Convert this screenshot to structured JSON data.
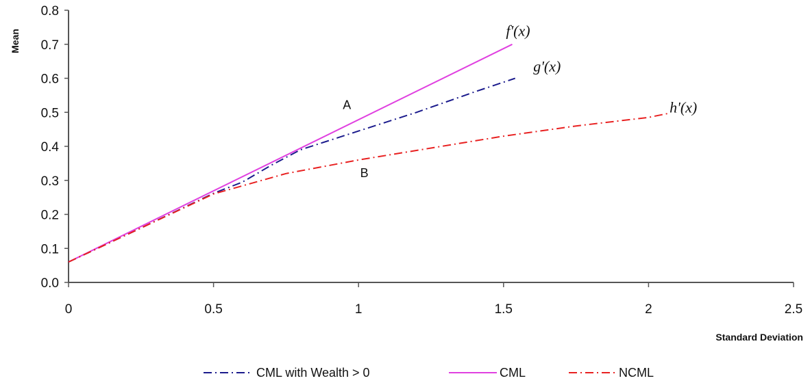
{
  "chart_data": {
    "type": "line",
    "xlabel": "Standard Deviation",
    "ylabel": "Mean",
    "xlim": [
      0,
      2.5
    ],
    "ylim": [
      0,
      0.8
    ],
    "x_ticks": [
      "0",
      "0.5",
      "1",
      "1.5",
      "2",
      "2.5"
    ],
    "y_ticks": [
      "0.0",
      "0.1",
      "0.2",
      "0.3",
      "0.4",
      "0.5",
      "0.6",
      "0.7",
      "0.8"
    ],
    "grid": false,
    "legend_position": "bottom",
    "series": [
      {
        "name": "CML with Wealth > 0",
        "color": "#1a1a8c",
        "dash": "dash-dot",
        "points": [
          [
            0,
            0.06
          ],
          [
            0.25,
            0.16
          ],
          [
            0.5,
            0.262
          ],
          [
            0.6,
            0.295
          ],
          [
            0.7,
            0.345
          ],
          [
            0.8,
            0.39
          ],
          [
            1.0,
            0.445
          ],
          [
            1.2,
            0.5
          ],
          [
            1.4,
            0.56
          ],
          [
            1.54,
            0.6
          ]
        ]
      },
      {
        "name": "CML",
        "color": "#e040e0",
        "dash": "solid",
        "points": [
          [
            0,
            0.06
          ],
          [
            1.53,
            0.7
          ]
        ]
      },
      {
        "name": "NCML",
        "color": "#e82020",
        "dash": "dash-dot",
        "points": [
          [
            0,
            0.06
          ],
          [
            0.25,
            0.16
          ],
          [
            0.5,
            0.26
          ],
          [
            0.75,
            0.32
          ],
          [
            1.0,
            0.36
          ],
          [
            1.25,
            0.395
          ],
          [
            1.5,
            0.43
          ],
          [
            1.75,
            0.46
          ],
          [
            2.0,
            0.485
          ],
          [
            2.07,
            0.497
          ]
        ]
      }
    ],
    "annotations": [
      {
        "text": "A",
        "x": 0.96,
        "y": 0.51,
        "style": "plain"
      },
      {
        "text": "B",
        "x": 1.02,
        "y": 0.31,
        "style": "plain"
      },
      {
        "text": "f'(x)",
        "x": 1.55,
        "y": 0.725,
        "style": "italic"
      },
      {
        "text": "g'(x)",
        "x": 1.65,
        "y": 0.62,
        "style": "italic"
      },
      {
        "text": "h'(x)",
        "x": 2.12,
        "y": 0.5,
        "style": "italic"
      }
    ]
  }
}
